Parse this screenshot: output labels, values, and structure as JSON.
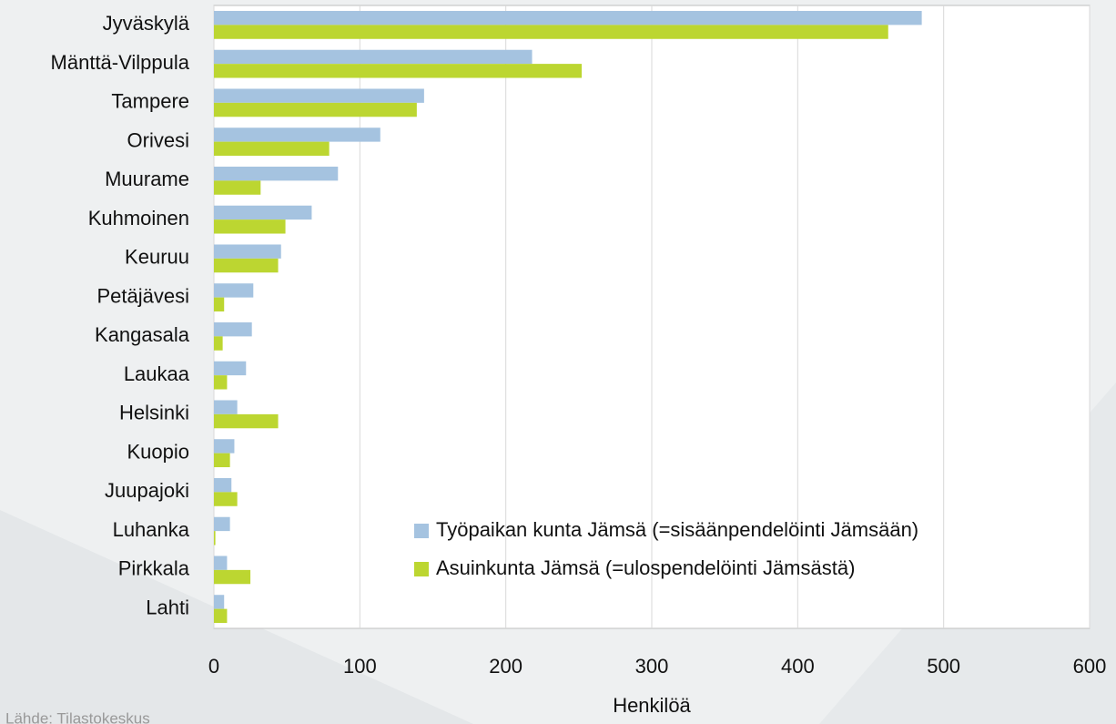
{
  "chart_data": {
    "type": "hbar",
    "categories": [
      "Jyväskylä",
      "Mänttä-Vilppula",
      "Tampere",
      "Orivesi",
      "Muurame",
      "Kuhmoinen",
      "Keuruu",
      "Petäjävesi",
      "Kangasala",
      "Laukaa",
      "Helsinki",
      "Kuopio",
      "Juupajoki",
      "Luhanka",
      "Pirkkala",
      "Lahti"
    ],
    "series": [
      {
        "name": "Työpaikan kunta Jämsä (=sisäänpendelöinti Jämsään)",
        "color": "#a5c3e0",
        "values": [
          485,
          218,
          144,
          114,
          85,
          67,
          46,
          27,
          26,
          22,
          16,
          14,
          12,
          11,
          9,
          7
        ]
      },
      {
        "name": "Asuinkunta Jämsä (=ulospendelöinti Jämsästä)",
        "color": "#bcd631",
        "values": [
          462,
          252,
          139,
          79,
          32,
          49,
          44,
          7,
          6,
          9,
          44,
          11,
          16,
          1,
          25,
          9
        ]
      }
    ],
    "xlabel": "Henkilöä",
    "xlim": [
      0,
      600
    ],
    "xticks": [
      0,
      100,
      200,
      300,
      400,
      500,
      600
    ],
    "grid": true,
    "legend": "lower right",
    "source": "Lähde: Tilastokeskus"
  }
}
